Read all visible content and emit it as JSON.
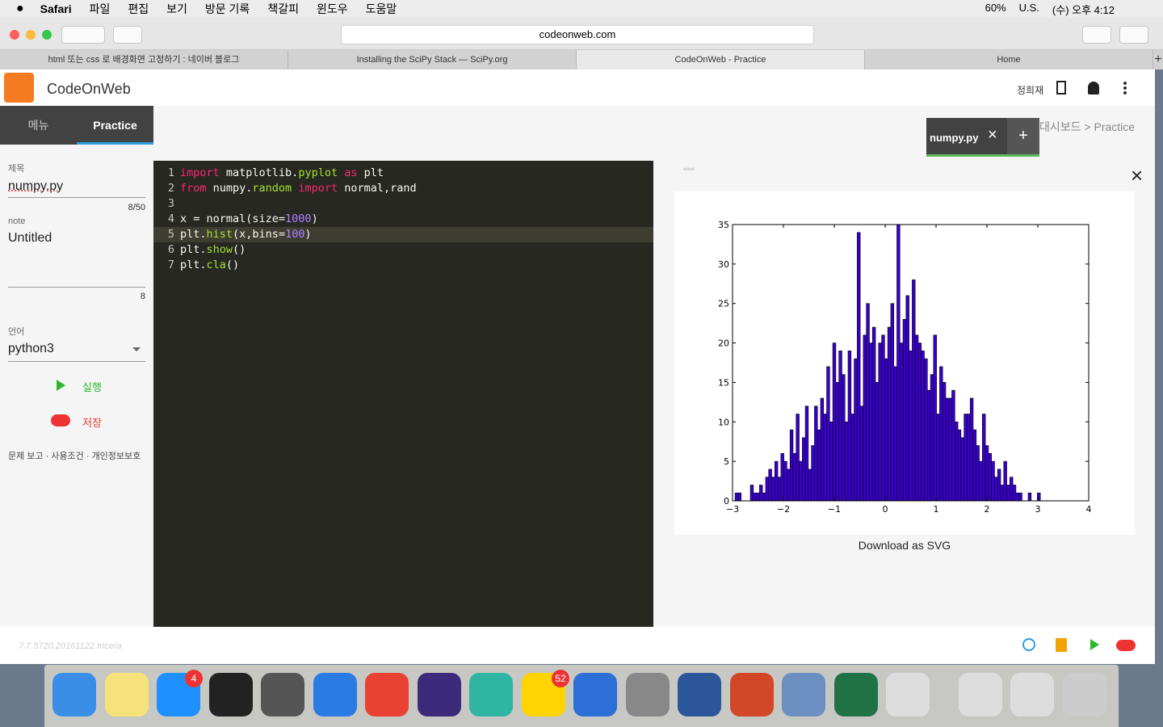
{
  "menubar": {
    "app": "Safari",
    "menus": [
      "파일",
      "편집",
      "보기",
      "방문 기록",
      "책갈피",
      "윈도우",
      "도움말"
    ],
    "status": [
      "60%",
      "U.S.",
      "(수) 오후 4:12"
    ]
  },
  "browser": {
    "url": "codeonweb.com",
    "tabs": [
      "html 또는 css 로 배경화면 고정하기 : 네이버 블로그",
      "Installing the SciPy Stack — SciPy.org",
      "CodeOnWeb - Practice",
      "Home"
    ]
  },
  "app": {
    "brand": "CodeOnWeb",
    "user": "정희재",
    "nav": [
      "메뉴",
      "Practice"
    ],
    "breadcrumb": "대시보드 > Practice",
    "file_tab": "numpy.py"
  },
  "sidebar": {
    "title_label": "제목",
    "title": "numpy.py",
    "title_count": "8/50",
    "note_label": "note",
    "note": "Untitled",
    "note_count": "8",
    "lang_label": "언어",
    "lang": "python3",
    "run": "실행",
    "save": "저장",
    "footer": "문제 보고 · 사용조건 · 개인정보보호",
    "version": "7.7.5720.20161122.tricera"
  },
  "editor": {
    "line_numbers": [
      1,
      2,
      3,
      4,
      5,
      6,
      7
    ],
    "lines": [
      {
        "tokens": [
          {
            "text": "import",
            "color": "#f92672"
          },
          {
            "text": " matplotlib.",
            "color": "#f8f8f2"
          },
          {
            "text": "pyplot",
            "color": "#a6e22e"
          },
          {
            "text": " as",
            "color": "#f92672"
          },
          {
            "text": " plt",
            "color": "#f8f8f2"
          }
        ]
      },
      {
        "tokens": [
          {
            "text": "from",
            "color": "#f92672"
          },
          {
            "text": " numpy.",
            "color": "#f8f8f2"
          },
          {
            "text": "random",
            "color": "#a6e22e"
          },
          {
            "text": " import",
            "color": "#f92672"
          },
          {
            "text": " normal,rand",
            "color": "#f8f8f2"
          }
        ]
      },
      {
        "tokens": []
      },
      {
        "tokens": [
          {
            "text": "x = normal(size=",
            "color": "#f8f8f2"
          },
          {
            "text": "1000",
            "color": "#ae81ff"
          },
          {
            "text": ")",
            "color": "#f8f8f2"
          }
        ]
      },
      {
        "tokens": [
          {
            "text": "plt.",
            "color": "#f8f8f2"
          },
          {
            "text": "hist",
            "color": "#a6e22e"
          },
          {
            "text": "(x,bins=",
            "color": "#f8f8f2"
          },
          {
            "text": "100",
            "color": "#ae81ff"
          },
          {
            "text": ")",
            "color": "#f8f8f2"
          }
        ]
      },
      {
        "tokens": [
          {
            "text": "plt.",
            "color": "#f8f8f2"
          },
          {
            "text": "show",
            "color": "#a6e22e"
          },
          {
            "text": "()",
            "color": "#f8f8f2"
          }
        ]
      },
      {
        "tokens": [
          {
            "text": "plt.",
            "color": "#f8f8f2"
          },
          {
            "text": "cla",
            "color": "#a6e22e"
          },
          {
            "text": "()",
            "color": "#f8f8f2"
          }
        ]
      }
    ]
  },
  "output": {
    "stdout_label": "stdout",
    "download": "Download as SVG"
  },
  "dock": {
    "badges": [
      "4",
      "52"
    ]
  },
  "chart_data": {
    "type": "histogram",
    "color": "#3a00cc",
    "edgecolor": "#000000",
    "bins": [
      -2.95,
      -2.89,
      -2.83,
      -2.77,
      -2.71,
      -2.65,
      -2.59,
      -2.53,
      -2.47,
      -2.41,
      -2.35,
      -2.29,
      -2.23,
      -2.17,
      -2.11,
      -2.05,
      -1.99,
      -1.93,
      -1.87,
      -1.81,
      -1.75,
      -1.69,
      -1.63,
      -1.57,
      -1.51,
      -1.45,
      -1.39,
      -1.33,
      -1.27,
      -1.21,
      -1.15,
      -1.09,
      -1.03,
      -0.97,
      -0.91,
      -0.85,
      -0.79,
      -0.73,
      -0.67,
      -0.61,
      -0.55,
      -0.49,
      -0.43,
      -0.37,
      -0.31,
      -0.25,
      -0.19,
      -0.13,
      -0.07,
      -0.01,
      0.05,
      0.11,
      0.17,
      0.23,
      0.29,
      0.35,
      0.41,
      0.47,
      0.53,
      0.59,
      0.65,
      0.71,
      0.77,
      0.83,
      0.89,
      0.95,
      1.01,
      1.07,
      1.13,
      1.19,
      1.25,
      1.31,
      1.37,
      1.43,
      1.49,
      1.55,
      1.61,
      1.67,
      1.73,
      1.79,
      1.85,
      1.91,
      1.97,
      2.03,
      2.09,
      2.15,
      2.21,
      2.27,
      2.33,
      2.39,
      2.45,
      2.51,
      2.57,
      2.63,
      2.69,
      2.75,
      2.81,
      2.87,
      2.93,
      2.99,
      3.05
    ],
    "counts": [
      1,
      1,
      0,
      0,
      0,
      2,
      1,
      1,
      2,
      1,
      3,
      4,
      3,
      5,
      3,
      6,
      5,
      4,
      9,
      6,
      11,
      5,
      8,
      12,
      4,
      7,
      12,
      9,
      13,
      11,
      17,
      10,
      20,
      15,
      19,
      16,
      10,
      19,
      11,
      18,
      34,
      12,
      21,
      25,
      20,
      22,
      15,
      20,
      21,
      18,
      22,
      25,
      17,
      35,
      20,
      23,
      26,
      19,
      28,
      21,
      20,
      19,
      18,
      14,
      16,
      21,
      11,
      17,
      15,
      13,
      13,
      14,
      10,
      9,
      8,
      11,
      11,
      13,
      9,
      7,
      5,
      11,
      7,
      6,
      5,
      3,
      4,
      2,
      5,
      2,
      3,
      2,
      1,
      1,
      0,
      0,
      1,
      0,
      0,
      1
    ],
    "xlim": [
      -3,
      4
    ],
    "ylim": [
      0,
      35
    ],
    "xticks": [
      {
        "value": -3,
        "label": "−3"
      },
      {
        "value": -2,
        "label": "−2"
      },
      {
        "value": -1,
        "label": "−1"
      },
      0,
      1,
      2,
      3,
      4
    ],
    "yticks": [
      0,
      5,
      10,
      15,
      20,
      25,
      30,
      35
    ]
  }
}
